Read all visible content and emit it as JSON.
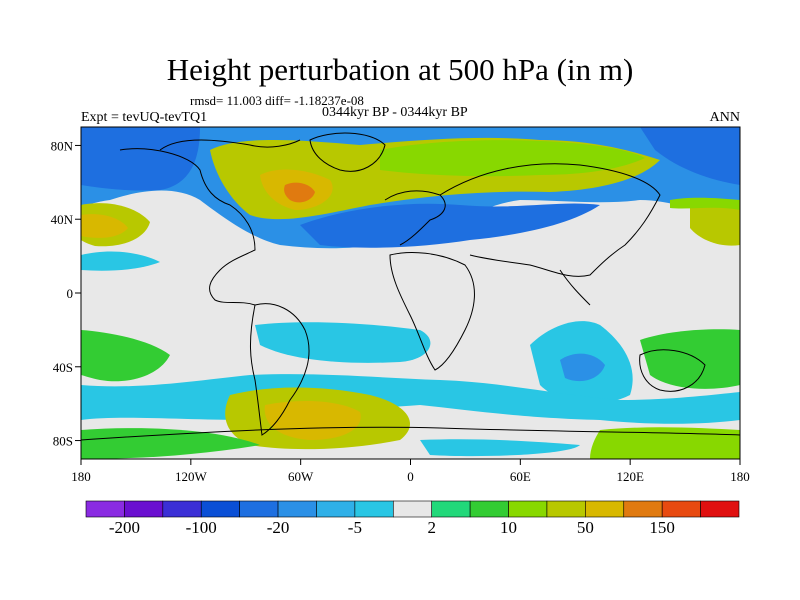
{
  "figure": {
    "title": "Height perturbation at 500 hPa (in m)",
    "stats": "rmsd= 11.003 diff= -1.18237e-08",
    "experiment": "Expt = tevUQ-tevTQ1",
    "period": "0344kyr BP - 0344kyr BP",
    "season": "ANN"
  },
  "map": {
    "x_ticks": [
      "180",
      "120W",
      "60W",
      "0",
      "60E",
      "120E",
      "180"
    ],
    "y_ticks": [
      "80N",
      "40N",
      "0",
      "40S",
      "80S"
    ]
  },
  "colorbar": {
    "colors": [
      "#8a2be2",
      "#6a0fd0",
      "#3b2fd6",
      "#0a4fd6",
      "#1e6fe0",
      "#2b90e6",
      "#2fb0e8",
      "#29c6e4",
      "#e8e8e8",
      "#22d87a",
      "#33cc33",
      "#88d800",
      "#b8c800",
      "#d8b800",
      "#e07a10",
      "#e84a10",
      "#e01010"
    ],
    "labels": [
      "-200",
      "-100",
      "-20",
      "-5",
      "2",
      "10",
      "50",
      "150"
    ]
  },
  "colors": {
    "neutral": "#e8e8e8",
    "land_outline": "#000000"
  }
}
